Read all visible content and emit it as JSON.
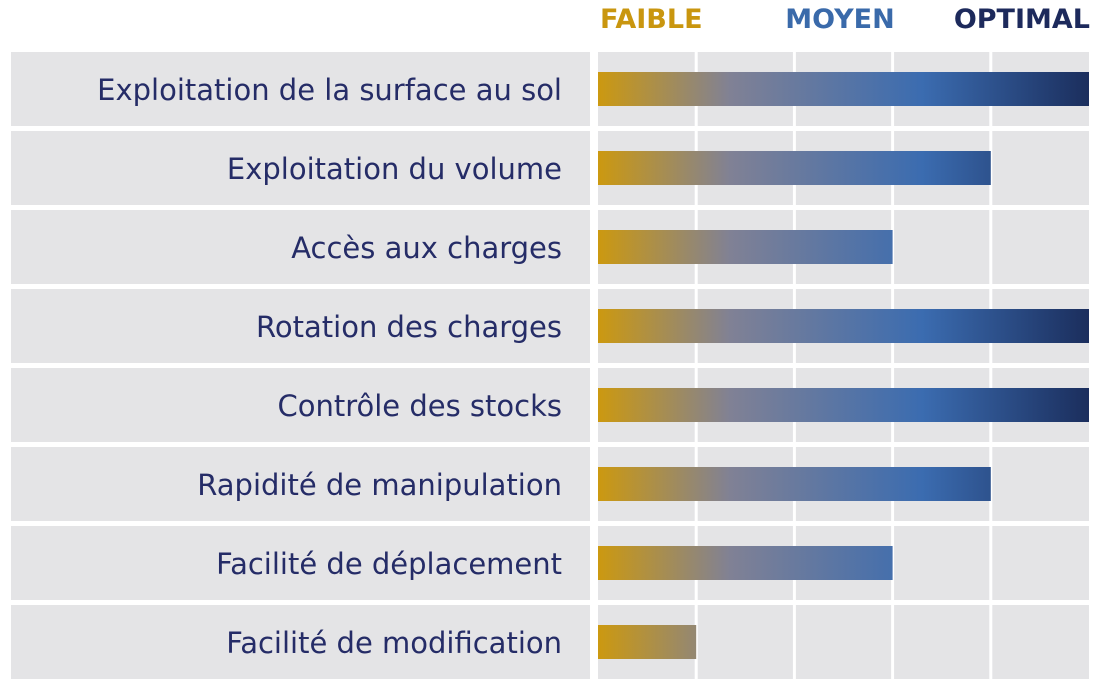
{
  "chart_data": {
    "type": "bar",
    "orientation": "horizontal",
    "scale_levels": [
      {
        "label": "FAIBLE",
        "color": "#c9960f"
      },
      {
        "label": "MOYEN",
        "color": "#3a6aaa"
      },
      {
        "label": "OPTIMAL",
        "color": "#1d2a5c"
      }
    ],
    "categories": [
      "Exploitation de la surface au sol",
      "Exploitation du volume",
      "Accès aux charges",
      "Rotation des charges",
      "Contrôle des stocks",
      "Rapidité de manipulation",
      "Facilité de déplacement",
      "Facilité de modification"
    ],
    "values": [
      5,
      4,
      3,
      5,
      5,
      4,
      3,
      1
    ],
    "xlim": [
      0,
      5
    ],
    "grid": true,
    "colors": {
      "row_background": "#e4e4e6",
      "label_text": "#252c67",
      "gradient_start": "#cc9910",
      "gradient_mid_1": "#808195",
      "gradient_mid_2": "#3b6cb0",
      "gradient_end": "#1b2e5d"
    }
  }
}
